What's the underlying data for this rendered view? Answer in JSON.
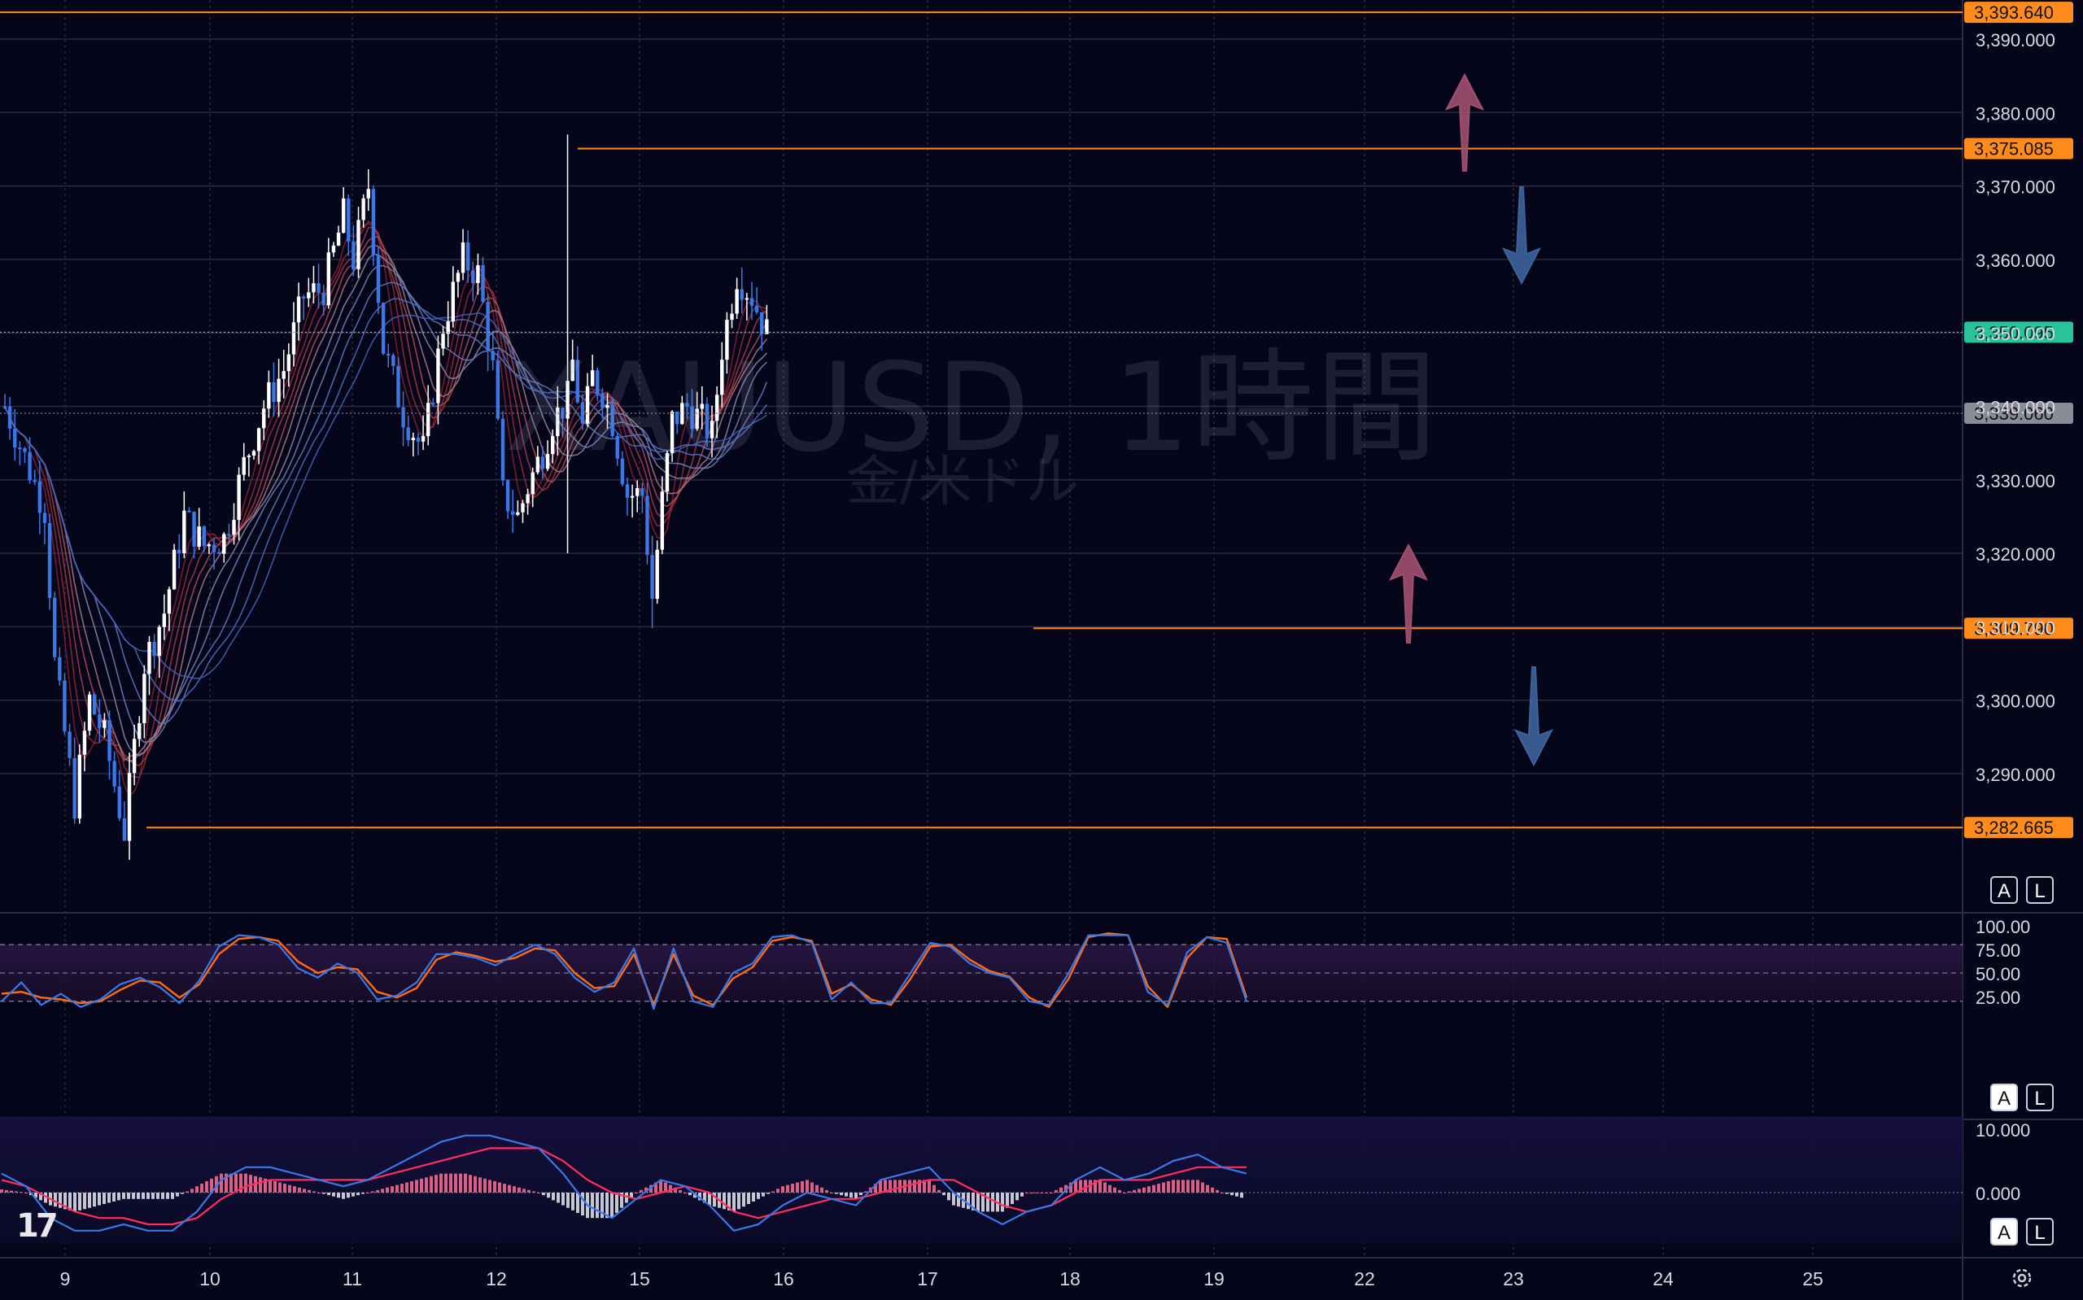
{
  "watermark": {
    "symbol": "XAUUSD, 1時間",
    "subtitle": "金/米ドル"
  },
  "price_scale_buttons": [
    {
      "label": "A"
    },
    {
      "label": "L"
    }
  ],
  "stoch_buttons": [
    {
      "label": "A"
    },
    {
      "label": "L"
    }
  ],
  "macd_buttons": [
    {
      "label": "A"
    },
    {
      "label": "L"
    }
  ],
  "logo": "17",
  "colors": {
    "background": "#06061a",
    "bull_candle": "#ffffff",
    "bear_candle": "#3b78e7",
    "level_line": "#ff8c1a",
    "current_price": "#29c39b",
    "stoch_k": "#3b78e7",
    "stoch_d": "#ff6a14",
    "macd_line": "#3b78e7",
    "signal_line": "#ff2e5f",
    "hist_pos": "#ff7090",
    "hist_neg": "#e8e8ee",
    "arrow_up": "#a0506f",
    "arrow_down": "#3d639b"
  },
  "chart_data": [
    {
      "type": "candlestick",
      "symbol": "XAUUSD",
      "timeframe": "1時間",
      "ylim": [
        3269.0,
        3397.0
      ],
      "y_ticks": [
        "3,290.000",
        "3,300.000",
        "3,310.000",
        "3,320.000",
        "3,330.000",
        "3,340.000",
        "3,350.000",
        "3,360.000",
        "3,370.000",
        "3,380.000",
        "3,390.000"
      ],
      "x_ticks": [
        "9",
        "10",
        "11",
        "12",
        "15",
        "16",
        "17",
        "18",
        "19",
        "22",
        "23",
        "24",
        "25"
      ],
      "levels": [
        {
          "value": 3393.64,
          "label": "3,393.640"
        },
        {
          "value": 3375.085,
          "label": "3,375.085"
        },
        {
          "value": 3309.79,
          "label": "3,309.790"
        },
        {
          "value": 3282.665,
          "label": "3,282.665"
        }
      ],
      "current_price": {
        "value": 3350.095,
        "label": "3,350.095"
      },
      "marker_price": {
        "value": 3339.06,
        "label": "3,339.060"
      },
      "ohlc_anchors": [
        [
          0,
          3340
        ],
        [
          8,
          3326
        ],
        [
          10,
          3305
        ],
        [
          14,
          3286
        ],
        [
          17,
          3300
        ],
        [
          20,
          3295
        ],
        [
          24,
          3282
        ],
        [
          28,
          3305
        ],
        [
          32,
          3312
        ],
        [
          36,
          3325
        ],
        [
          40,
          3321
        ],
        [
          44,
          3322
        ],
        [
          48,
          3332
        ],
        [
          52,
          3340
        ],
        [
          56,
          3345
        ],
        [
          60,
          3355
        ],
        [
          64,
          3356
        ],
        [
          68,
          3366
        ],
        [
          70,
          3360
        ],
        [
          73,
          3370
        ],
        [
          76,
          3348
        ],
        [
          80,
          3339
        ],
        [
          84,
          3334
        ],
        [
          88,
          3351
        ],
        [
          92,
          3360
        ],
        [
          95,
          3358
        ],
        [
          98,
          3345
        ],
        [
          100,
          3328
        ],
        [
          103,
          3325
        ],
        [
          105,
          3329
        ],
        [
          108,
          3334
        ],
        [
          110,
          3338
        ],
        [
          113,
          3341
        ],
        [
          114,
          3346
        ],
        [
          116,
          3337
        ],
        [
          118,
          3344
        ],
        [
          120,
          3342
        ],
        [
          122,
          3338
        ],
        [
          125,
          3328
        ],
        [
          128,
          3328
        ],
        [
          130,
          3314
        ],
        [
          132,
          3327
        ],
        [
          134,
          3338
        ],
        [
          137,
          3340
        ],
        [
          140,
          3338
        ],
        [
          142,
          3336
        ],
        [
          144,
          3348
        ],
        [
          147,
          3358
        ],
        [
          150,
          3355
        ],
        [
          153,
          3350
        ]
      ],
      "ma_ribbon": "multiple moving averages (red / blue gradient ribbon)",
      "annotations": [
        {
          "type": "arrow-up",
          "x": 180,
          "y": 3376
        },
        {
          "type": "arrow-down",
          "x": 187,
          "y": 3373
        },
        {
          "type": "arrow-up",
          "x": 173,
          "y": 3310
        },
        {
          "type": "arrow-down",
          "x": 188,
          "y": 3307
        }
      ]
    },
    {
      "type": "line",
      "name": "stochastic",
      "ylim": [
        0,
        100
      ],
      "y_ticks": [
        "100.00",
        "75.00",
        "50.00",
        "25.00"
      ],
      "bands": [
        80,
        50,
        20
      ],
      "k": [
        20,
        40,
        16,
        28,
        14,
        22,
        38,
        45,
        35,
        18,
        42,
        78,
        90,
        88,
        80,
        55,
        45,
        60,
        50,
        22,
        26,
        40,
        70,
        70,
        66,
        58,
        70,
        80,
        70,
        45,
        30,
        40,
        76,
        12,
        76,
        20,
        14,
        50,
        60,
        88,
        90,
        82,
        22,
        40,
        18,
        18,
        50,
        82,
        78,
        60,
        50,
        45,
        20,
        16,
        50,
        90,
        90,
        90,
        30,
        16,
        72,
        88,
        82,
        20
      ],
      "d": [
        28,
        30,
        24,
        22,
        18,
        20,
        32,
        42,
        40,
        24,
        38,
        70,
        86,
        88,
        84,
        62,
        50,
        56,
        54,
        30,
        24,
        34,
        64,
        72,
        68,
        62,
        66,
        76,
        74,
        50,
        34,
        36,
        70,
        16,
        70,
        26,
        16,
        44,
        56,
        84,
        88,
        84,
        28,
        38,
        22,
        16,
        44,
        78,
        80,
        64,
        52,
        46,
        24,
        14,
        44,
        88,
        92,
        90,
        36,
        14,
        66,
        88,
        86,
        24
      ]
    },
    {
      "type": "line",
      "name": "macd",
      "ylim": [
        -8,
        12
      ],
      "y_ticks": [
        "10.000",
        "0.000"
      ],
      "macd": [
        3,
        1,
        -4,
        -6,
        -6,
        -5,
        -6,
        -6,
        -3,
        2,
        4,
        4,
        3,
        2,
        1,
        2,
        4,
        6,
        8,
        9,
        9,
        8,
        7,
        3,
        -2,
        -4,
        -1,
        2,
        1,
        -2,
        -6,
        -5,
        -2,
        0,
        -1,
        -2,
        2,
        3,
        4,
        0,
        -3,
        -5,
        -3,
        -2,
        2,
        4,
        2,
        3,
        5,
        6,
        4,
        3
      ],
      "signal": [
        2,
        1,
        -1,
        -3,
        -4,
        -4,
        -5,
        -5,
        -4,
        -1,
        1,
        2,
        2,
        2,
        2,
        2,
        3,
        4,
        5,
        6,
        7,
        7,
        7,
        5,
        2,
        0,
        -1,
        0,
        1,
        0,
        -3,
        -4,
        -3,
        -2,
        -1,
        -1,
        0,
        1,
        2,
        2,
        0,
        -2,
        -3,
        -2,
        0,
        2,
        2,
        2,
        3,
        4,
        4,
        4
      ],
      "histogram": [
        0.5,
        0,
        -2,
        -3,
        -2,
        -1,
        -1,
        -1,
        1,
        3,
        3,
        2,
        1,
        0,
        -1,
        0,
        1,
        2,
        3,
        3,
        2,
        1,
        0,
        -2,
        -4,
        -4,
        0,
        2,
        0,
        -2,
        -3,
        -1,
        1,
        2,
        0,
        -1,
        2,
        2,
        2,
        -2,
        -3,
        -3,
        0,
        0,
        2,
        2,
        0,
        1,
        2,
        2,
        0,
        -1
      ]
    }
  ]
}
